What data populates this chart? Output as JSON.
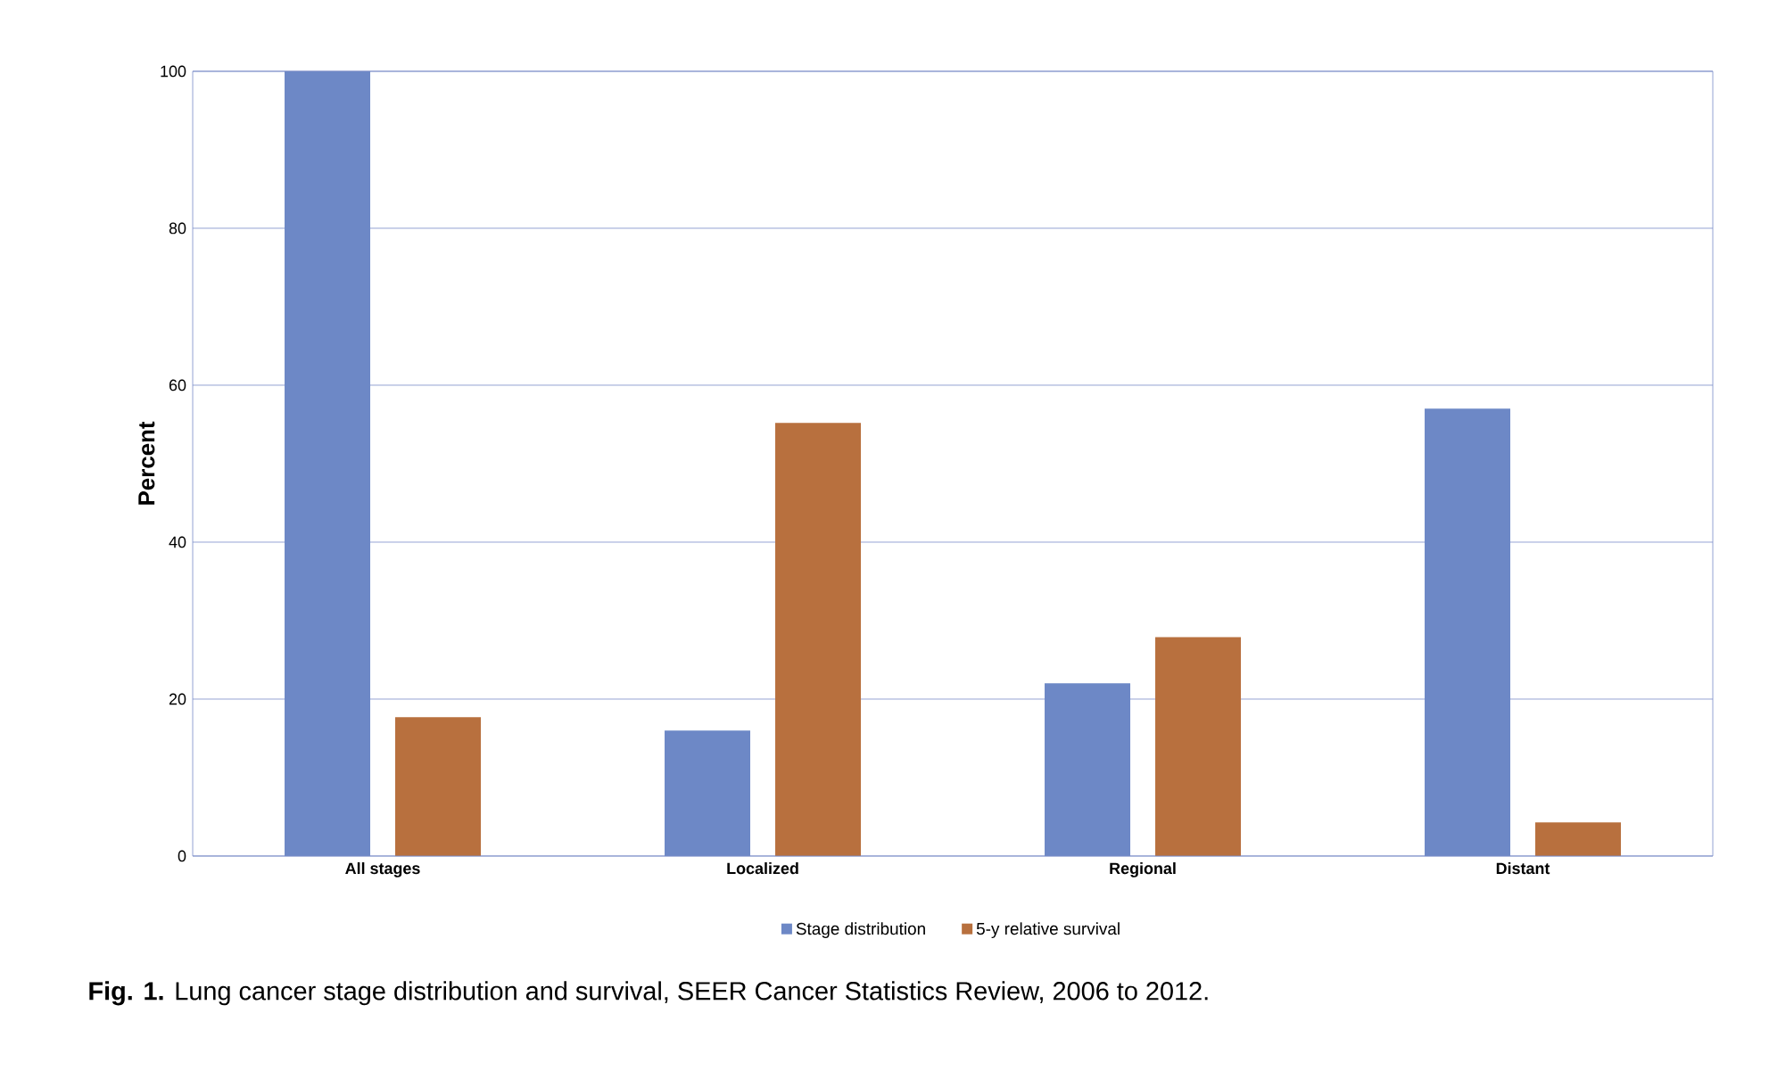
{
  "chart_data": {
    "type": "bar",
    "title": "**Fig. 1.** Lung cancer stage distribution and survival, SEER Cancer Statistics Review, 2006 to 2012.",
    "ylabel": "Percent",
    "categories": [
      "All stages",
      "Localized",
      "Regional",
      "Distant"
    ],
    "series": [
      {
        "name": "Stage distribution",
        "color": "#6d88c6",
        "values": [
          100,
          16,
          22,
          57
        ]
      },
      {
        "name": "5-y relative survival",
        "color": "#b8703e",
        "values": [
          17.7,
          55.2,
          27.9,
          4.3
        ]
      }
    ],
    "ylim": [
      0,
      100
    ],
    "yticks": [
      0,
      20,
      40,
      60,
      80,
      100
    ],
    "grid": "y",
    "legend": "bottom"
  }
}
